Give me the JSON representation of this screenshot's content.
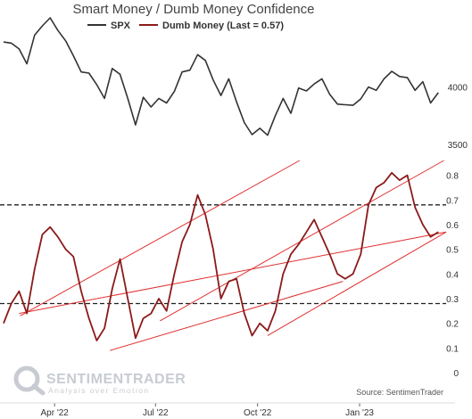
{
  "chart_data": {
    "type": "line",
    "title": "Smart Money / Dumb Money Confidence",
    "legend": [
      {
        "name": "SPX",
        "color": "#333333"
      },
      {
        "name": "Dumb Money (Last = 0.57)",
        "color": "#8b1a1a"
      }
    ],
    "legend_placement": "top-center",
    "x_tick_labels": [
      "Apr '22",
      "Jul '22",
      "Oct '22",
      "Jan '23"
    ],
    "x_range": [
      "2022-02-14",
      "2023-03-20"
    ],
    "spx_axis": {
      "tick_labels": [
        "4000",
        "3500"
      ],
      "ticks": [
        4000,
        3500
      ],
      "ylim": [
        3500,
        4600
      ]
    },
    "dumb_money_axis": {
      "tick_labels": [
        "0.8",
        "0.7",
        "0.6",
        "0.5",
        "0.4",
        "0.3",
        "0.2",
        "0.1",
        "0"
      ],
      "ticks": [
        0.8,
        0.7,
        0.6,
        0.5,
        0.4,
        0.3,
        0.2,
        0.1,
        0
      ],
      "ylim": [
        0,
        0.86
      ]
    },
    "reference_lines": [
      0.68,
      0.28
    ],
    "series": [
      {
        "name": "SPX",
        "color": "#333333",
        "points": [
          [
            "2022-02-14",
            4390
          ],
          [
            "2022-02-21",
            4380
          ],
          [
            "2022-02-28",
            4330
          ],
          [
            "2022-03-07",
            4200
          ],
          [
            "2022-03-14",
            4450
          ],
          [
            "2022-03-21",
            4530
          ],
          [
            "2022-03-28",
            4600
          ],
          [
            "2022-04-04",
            4490
          ],
          [
            "2022-04-11",
            4400
          ],
          [
            "2022-04-18",
            4270
          ],
          [
            "2022-04-25",
            4130
          ],
          [
            "2022-05-02",
            4120
          ],
          [
            "2022-05-09",
            4020
          ],
          [
            "2022-05-16",
            3900
          ],
          [
            "2022-05-23",
            4160
          ],
          [
            "2022-05-30",
            4110
          ],
          [
            "2022-06-06",
            3900
          ],
          [
            "2022-06-13",
            3670
          ],
          [
            "2022-06-20",
            3910
          ],
          [
            "2022-06-27",
            3825
          ],
          [
            "2022-07-04",
            3900
          ],
          [
            "2022-07-11",
            3860
          ],
          [
            "2022-07-18",
            3960
          ],
          [
            "2022-07-25",
            4130
          ],
          [
            "2022-08-01",
            4145
          ],
          [
            "2022-08-08",
            4280
          ],
          [
            "2022-08-15",
            4230
          ],
          [
            "2022-08-22",
            4060
          ],
          [
            "2022-08-29",
            3925
          ],
          [
            "2022-09-05",
            4070
          ],
          [
            "2022-09-12",
            3870
          ],
          [
            "2022-09-19",
            3690
          ],
          [
            "2022-09-26",
            3585
          ],
          [
            "2022-10-03",
            3640
          ],
          [
            "2022-10-10",
            3580
          ],
          [
            "2022-10-17",
            3750
          ],
          [
            "2022-10-24",
            3900
          ],
          [
            "2022-10-31",
            3770
          ],
          [
            "2022-11-07",
            3990
          ],
          [
            "2022-11-14",
            3965
          ],
          [
            "2022-11-21",
            4025
          ],
          [
            "2022-11-28",
            4070
          ],
          [
            "2022-12-05",
            3935
          ],
          [
            "2022-12-12",
            3850
          ],
          [
            "2022-12-19",
            3845
          ],
          [
            "2022-12-26",
            3840
          ],
          [
            "2023-01-02",
            3895
          ],
          [
            "2023-01-09",
            3999
          ],
          [
            "2023-01-16",
            3970
          ],
          [
            "2023-01-23",
            4070
          ],
          [
            "2023-01-30",
            4135
          ],
          [
            "2023-02-06",
            4090
          ],
          [
            "2023-02-13",
            4080
          ],
          [
            "2023-02-20",
            3970
          ],
          [
            "2023-02-27",
            4045
          ],
          [
            "2023-03-06",
            3860
          ],
          [
            "2023-03-13",
            3950
          ]
        ]
      },
      {
        "name": "Dumb Money",
        "color": "#8b1a1a",
        "points": [
          [
            "2022-02-14",
            0.2
          ],
          [
            "2022-02-21",
            0.28
          ],
          [
            "2022-02-28",
            0.33
          ],
          [
            "2022-03-07",
            0.24
          ],
          [
            "2022-03-14",
            0.42
          ],
          [
            "2022-03-21",
            0.56
          ],
          [
            "2022-03-28",
            0.59
          ],
          [
            "2022-04-04",
            0.55
          ],
          [
            "2022-04-11",
            0.5
          ],
          [
            "2022-04-18",
            0.47
          ],
          [
            "2022-04-25",
            0.33
          ],
          [
            "2022-05-02",
            0.22
          ],
          [
            "2022-05-09",
            0.13
          ],
          [
            "2022-05-16",
            0.18
          ],
          [
            "2022-05-23",
            0.34
          ],
          [
            "2022-05-30",
            0.46
          ],
          [
            "2022-06-06",
            0.3
          ],
          [
            "2022-06-13",
            0.14
          ],
          [
            "2022-06-20",
            0.22
          ],
          [
            "2022-06-27",
            0.24
          ],
          [
            "2022-07-04",
            0.3
          ],
          [
            "2022-07-11",
            0.25
          ],
          [
            "2022-07-18",
            0.4
          ],
          [
            "2022-07-25",
            0.53
          ],
          [
            "2022-08-01",
            0.6
          ],
          [
            "2022-08-08",
            0.72
          ],
          [
            "2022-08-15",
            0.64
          ],
          [
            "2022-08-22",
            0.5
          ],
          [
            "2022-08-29",
            0.3
          ],
          [
            "2022-09-05",
            0.37
          ],
          [
            "2022-09-12",
            0.38
          ],
          [
            "2022-09-19",
            0.24
          ],
          [
            "2022-09-26",
            0.15
          ],
          [
            "2022-10-03",
            0.2
          ],
          [
            "2022-10-10",
            0.17
          ],
          [
            "2022-10-17",
            0.25
          ],
          [
            "2022-10-24",
            0.4
          ],
          [
            "2022-10-31",
            0.48
          ],
          [
            "2022-11-07",
            0.52
          ],
          [
            "2022-11-14",
            0.57
          ],
          [
            "2022-11-21",
            0.62
          ],
          [
            "2022-11-28",
            0.55
          ],
          [
            "2022-12-05",
            0.48
          ],
          [
            "2022-12-12",
            0.4
          ],
          [
            "2022-12-19",
            0.38
          ],
          [
            "2022-12-26",
            0.4
          ],
          [
            "2023-01-02",
            0.48
          ],
          [
            "2023-01-09",
            0.68
          ],
          [
            "2023-01-16",
            0.75
          ],
          [
            "2023-01-23",
            0.77
          ],
          [
            "2023-01-30",
            0.81
          ],
          [
            "2023-02-06",
            0.78
          ],
          [
            "2023-02-13",
            0.8
          ],
          [
            "2023-02-20",
            0.67
          ],
          [
            "2023-02-27",
            0.6
          ],
          [
            "2023-03-06",
            0.55
          ],
          [
            "2023-03-13",
            0.57
          ]
        ]
      }
    ],
    "trend_channels": [
      {
        "color": "#e03030",
        "lines": [
          [
            [
              "2022-02-28",
              0.24
            ],
            [
              "2023-03-20",
              0.57
            ]
          ],
          [
            [
              "2022-03-01",
              0.23
            ],
            [
              "2022-11-08",
              0.86
            ]
          ],
          [
            [
              "2022-05-21",
              0.09
            ],
            [
              "2022-12-17",
              0.37
            ]
          ],
          [
            [
              "2022-07-05",
              0.21
            ],
            [
              "2023-03-18",
              0.86
            ]
          ],
          [
            [
              "2022-10-10",
              0.15
            ],
            [
              "2023-03-20",
              0.57
            ]
          ]
        ]
      }
    ],
    "grid": false,
    "source_text": "Source: SentimenTrader",
    "brand_name": "SENTIMENTRADER",
    "brand_tagline": "Analysis over Emotion"
  }
}
